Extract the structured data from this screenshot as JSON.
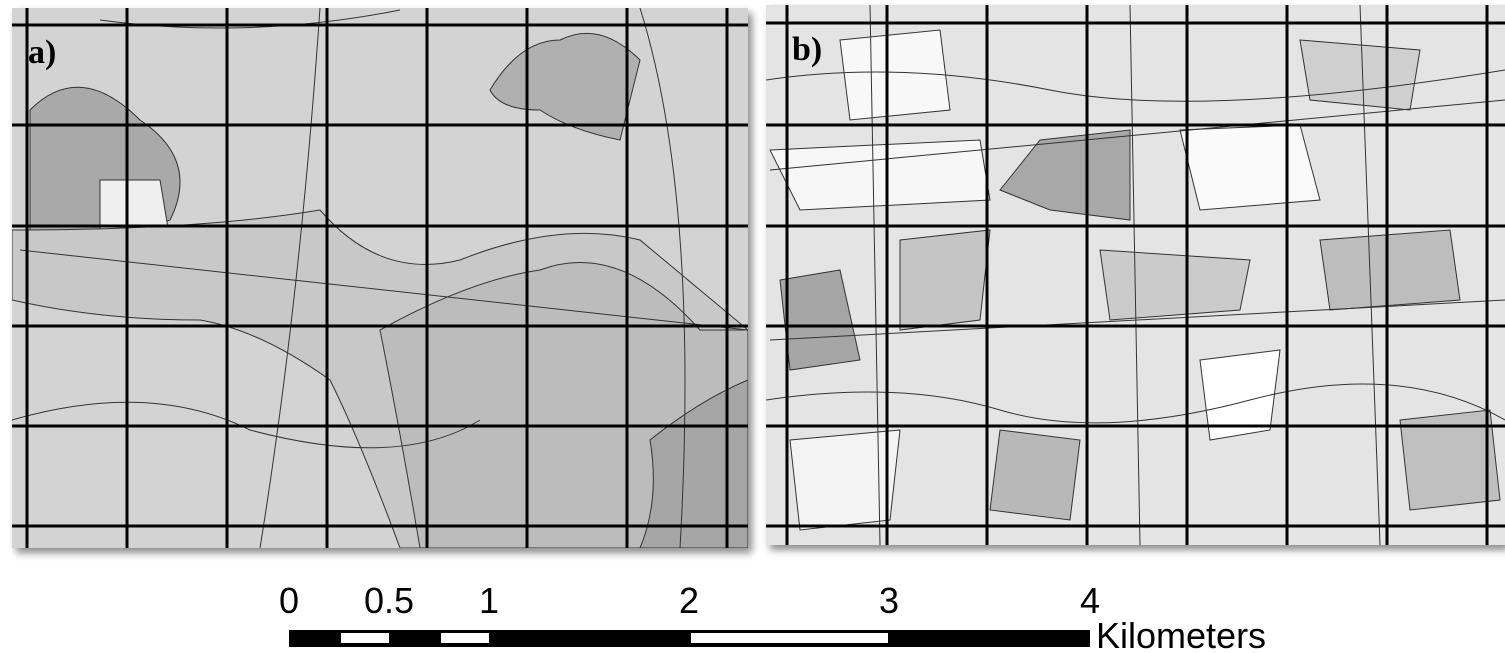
{
  "panels": [
    {
      "label": "a)"
    },
    {
      "label": "b)"
    }
  ],
  "scale_bar": {
    "labels": [
      "0",
      "0.5",
      "1",
      "2",
      "3",
      "4"
    ],
    "unit": "Kilometers"
  }
}
